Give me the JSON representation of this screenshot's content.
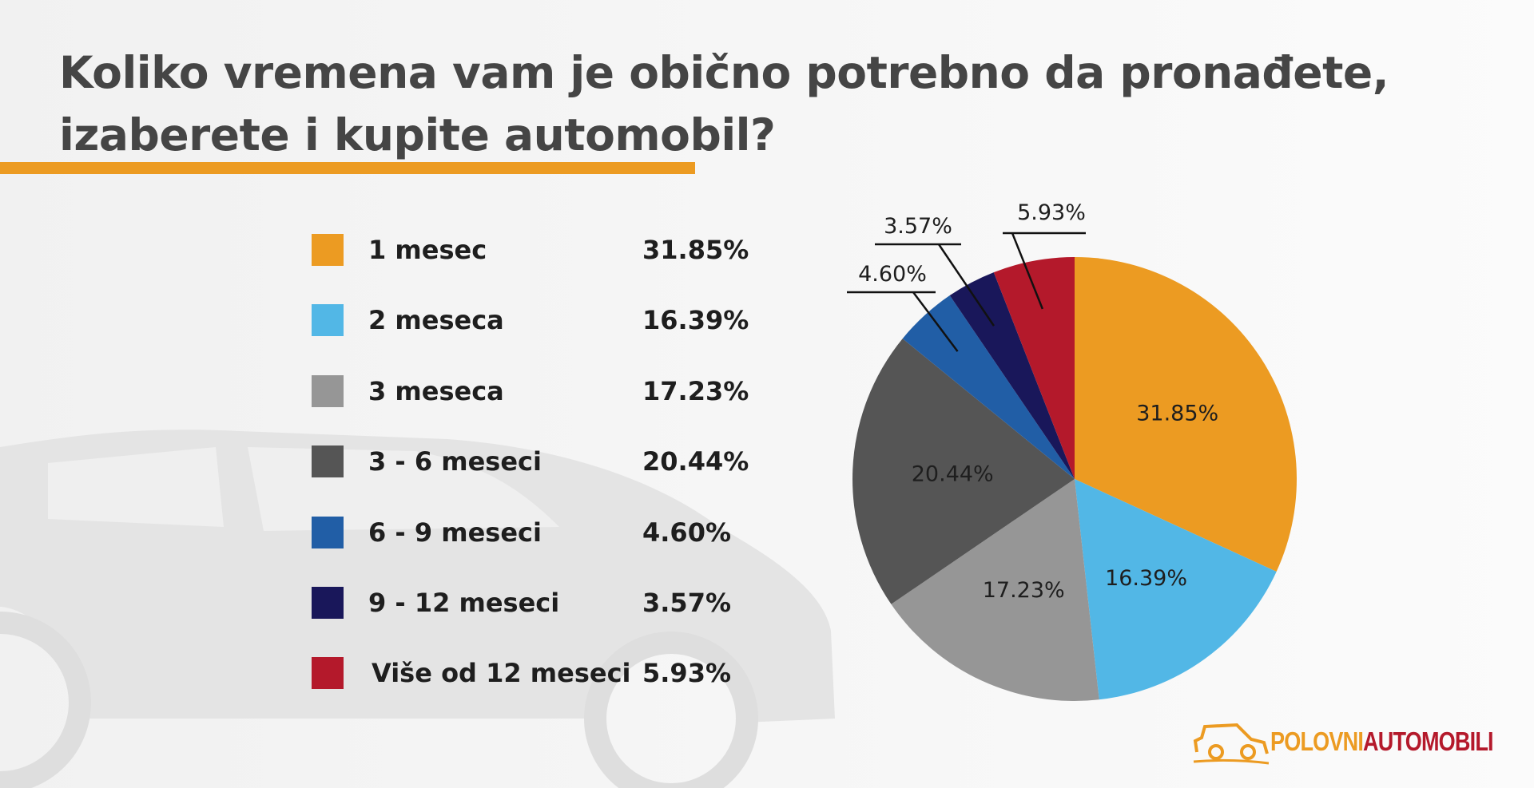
{
  "chart_data": {
    "type": "pie",
    "title": "Koliko vremena vam je obično potrebno da pronađete, izaberete i kupite automobil?",
    "title_lines": [
      "Koliko vremena vam je obično potrebno da pronađete,",
      "izaberete i kupite automobil?"
    ],
    "start_angle": "top (12 o'clock), clockwise",
    "legend_placement": "left",
    "slices": [
      {
        "label": "1 mesec",
        "value": 31.85,
        "display": "31.85%",
        "color": "#ec9b22"
      },
      {
        "label": "2 meseca",
        "value": 16.39,
        "display": "16.39%",
        "color": "#52b7e6"
      },
      {
        "label": "3 meseca",
        "value": 17.23,
        "display": "17.23%",
        "color": "#969696"
      },
      {
        "label": "3 - 6 meseci",
        "value": 20.44,
        "display": "20.44%",
        "color": "#555555"
      },
      {
        "label": "6 - 9 meseci",
        "value": 4.6,
        "display": "4.60%",
        "color": "#215ea6"
      },
      {
        "label": "9 - 12 meseci",
        "value": 3.57,
        "display": "3.57%",
        "color": "#19175a"
      },
      {
        "label": "Više od 12 meseci",
        "value": 5.93,
        "display": "5.93%",
        "color": "#b4192b"
      }
    ]
  },
  "brand": {
    "part1": "POLOVNI",
    "part2": "AUTOMOBILI",
    "color1": "#ec9b22",
    "color2": "#b4192b"
  },
  "accent_color": "#ec9b22"
}
